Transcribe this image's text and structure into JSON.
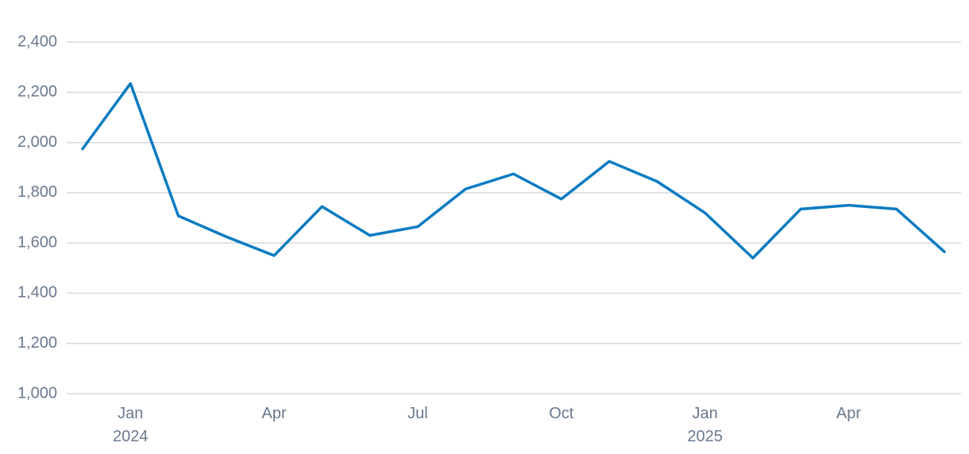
{
  "chart_data": {
    "type": "line",
    "categories": [
      null,
      "Jan\n2024",
      null,
      null,
      "Apr",
      null,
      null,
      "Jul",
      null,
      null,
      "Oct",
      null,
      null,
      "Jan\n2025",
      null,
      null,
      "Apr",
      null,
      null
    ],
    "series": [
      {
        "color": "#0a7bc1",
        "values": [
          1975,
          2235,
          1708,
          1625,
          1550,
          1745,
          1630,
          1665,
          1815,
          1875,
          1775,
          1925,
          1845,
          1720,
          1540,
          1735,
          1750,
          1735,
          1565
        ]
      }
    ],
    "ylim": [
      1000,
      2400
    ],
    "yticks": [
      {
        "value": 1000,
        "label": "1,000"
      },
      {
        "value": 1200,
        "label": "1,200"
      },
      {
        "value": 1400,
        "label": "1,400"
      },
      {
        "value": 1600,
        "label": "1,600"
      },
      {
        "value": 1800,
        "label": "1,800"
      },
      {
        "value": 2000,
        "label": "2,000"
      },
      {
        "value": 2200,
        "label": "2,200"
      },
      {
        "value": 2400,
        "label": "2,400"
      }
    ],
    "grid": true
  }
}
